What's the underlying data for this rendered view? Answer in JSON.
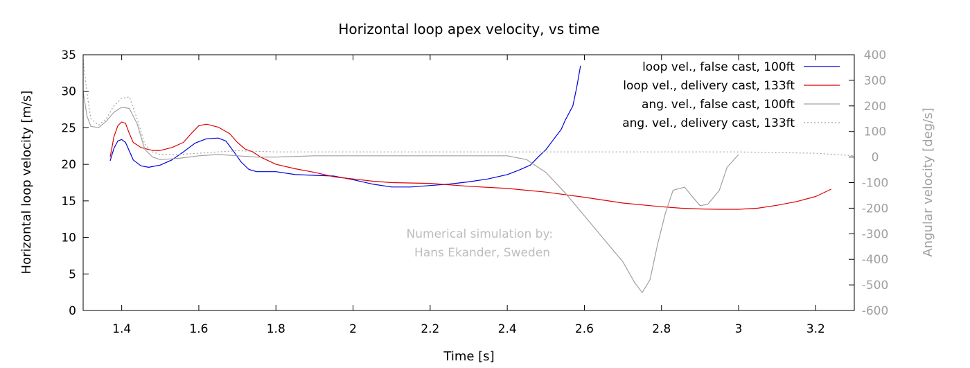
{
  "chart_data": {
    "type": "line",
    "title": "Horizontal loop apex velocity, vs time",
    "xlabel": "Time [s]",
    "ylabel": "Horizontal loop velocity [m/s]",
    "y2label": "Angular velocity [deg/s]",
    "xlim": [
      1.3,
      3.3
    ],
    "ylim": [
      0,
      35
    ],
    "y2lim": [
      -600,
      400
    ],
    "xticks": [
      1.4,
      1.6,
      1.8,
      2,
      2.2,
      2.4,
      2.6,
      2.8,
      3,
      3.2
    ],
    "xtick_labels": [
      "1.4",
      "1.6",
      "1.8",
      "2",
      "2.2",
      "2.4",
      "2.6",
      "2.8",
      "3",
      "3.2"
    ],
    "yticks": [
      0,
      5,
      10,
      15,
      20,
      25,
      30,
      35
    ],
    "ytick_labels": [
      "0",
      "5",
      "10",
      "15",
      "20",
      "25",
      "30",
      "35"
    ],
    "y2ticks": [
      -600,
      -500,
      -400,
      -300,
      -200,
      -100,
      0,
      100,
      200,
      300,
      400
    ],
    "y2tick_labels": [
      "-600",
      "-500",
      "-400",
      "-300",
      "-200",
      "-100",
      "0",
      "100",
      "200",
      "300",
      "400"
    ],
    "grid": false,
    "legend": "top-right",
    "annotation": [
      "Numerical simulation by:",
      "Hans Ekander, Sweden"
    ],
    "series": [
      {
        "name": "loop vel., false cast, 100ft",
        "axis": "left",
        "color": "#0000dd",
        "dash": "solid",
        "points": [
          [
            1.37,
            20.5
          ],
          [
            1.38,
            22.2
          ],
          [
            1.39,
            23.2
          ],
          [
            1.4,
            23.4
          ],
          [
            1.41,
            23.0
          ],
          [
            1.42,
            21.8
          ],
          [
            1.43,
            20.6
          ],
          [
            1.45,
            19.8
          ],
          [
            1.47,
            19.6
          ],
          [
            1.5,
            19.9
          ],
          [
            1.53,
            20.6
          ],
          [
            1.56,
            21.7
          ],
          [
            1.59,
            22.9
          ],
          [
            1.62,
            23.5
          ],
          [
            1.65,
            23.6
          ],
          [
            1.67,
            23.2
          ],
          [
            1.69,
            21.8
          ],
          [
            1.71,
            20.3
          ],
          [
            1.73,
            19.3
          ],
          [
            1.75,
            19.0
          ],
          [
            1.8,
            19.0
          ],
          [
            1.85,
            18.6
          ],
          [
            1.9,
            18.5
          ],
          [
            1.95,
            18.4
          ],
          [
            2.0,
            17.9
          ],
          [
            2.05,
            17.3
          ],
          [
            2.1,
            16.9
          ],
          [
            2.15,
            16.9
          ],
          [
            2.2,
            17.1
          ],
          [
            2.25,
            17.3
          ],
          [
            2.3,
            17.6
          ],
          [
            2.35,
            18.0
          ],
          [
            2.4,
            18.6
          ],
          [
            2.43,
            19.2
          ],
          [
            2.46,
            19.9
          ],
          [
            2.48,
            21.0
          ],
          [
            2.5,
            22.0
          ],
          [
            2.52,
            23.4
          ],
          [
            2.54,
            24.8
          ],
          [
            2.55,
            26.0
          ],
          [
            2.57,
            28.0
          ],
          [
            2.58,
            30.5
          ],
          [
            2.59,
            33.5
          ]
        ]
      },
      {
        "name": "loop vel., delivery cast, 133ft",
        "axis": "left",
        "color": "#dd0000",
        "dash": "solid",
        "points": [
          [
            1.37,
            21.0
          ],
          [
            1.38,
            23.8
          ],
          [
            1.39,
            25.3
          ],
          [
            1.4,
            25.8
          ],
          [
            1.41,
            25.6
          ],
          [
            1.42,
            24.2
          ],
          [
            1.43,
            23.0
          ],
          [
            1.45,
            22.3
          ],
          [
            1.48,
            21.9
          ],
          [
            1.5,
            21.9
          ],
          [
            1.53,
            22.3
          ],
          [
            1.56,
            23.0
          ],
          [
            1.58,
            24.2
          ],
          [
            1.6,
            25.3
          ],
          [
            1.62,
            25.5
          ],
          [
            1.65,
            25.1
          ],
          [
            1.68,
            24.2
          ],
          [
            1.7,
            23.0
          ],
          [
            1.72,
            22.1
          ],
          [
            1.74,
            21.7
          ],
          [
            1.76,
            21.0
          ],
          [
            1.8,
            20.0
          ],
          [
            1.85,
            19.4
          ],
          [
            1.9,
            18.9
          ],
          [
            1.95,
            18.3
          ],
          [
            2.0,
            18.0
          ],
          [
            2.05,
            17.7
          ],
          [
            2.1,
            17.5
          ],
          [
            2.2,
            17.4
          ],
          [
            2.3,
            17.0
          ],
          [
            2.4,
            16.7
          ],
          [
            2.5,
            16.2
          ],
          [
            2.6,
            15.5
          ],
          [
            2.7,
            14.7
          ],
          [
            2.8,
            14.2
          ],
          [
            2.85,
            14.0
          ],
          [
            2.9,
            13.9
          ],
          [
            2.95,
            13.85
          ],
          [
            3.0,
            13.85
          ],
          [
            3.05,
            14.0
          ],
          [
            3.1,
            14.4
          ],
          [
            3.15,
            14.9
          ],
          [
            3.2,
            15.6
          ],
          [
            3.24,
            16.6
          ]
        ]
      },
      {
        "name": "ang. vel., false cast, 100ft",
        "axis": "right",
        "color": "#a0a0a0",
        "dash": "solid",
        "points": [
          [
            1.3,
            255
          ],
          [
            1.31,
            160
          ],
          [
            1.32,
            120
          ],
          [
            1.34,
            115
          ],
          [
            1.36,
            140
          ],
          [
            1.38,
            175
          ],
          [
            1.4,
            195
          ],
          [
            1.42,
            190
          ],
          [
            1.44,
            130
          ],
          [
            1.46,
            30
          ],
          [
            1.48,
            0
          ],
          [
            1.5,
            -10
          ],
          [
            1.55,
            -5
          ],
          [
            1.6,
            5
          ],
          [
            1.65,
            10
          ],
          [
            1.7,
            5
          ],
          [
            1.75,
            0
          ],
          [
            1.8,
            0
          ],
          [
            1.9,
            5
          ],
          [
            2.0,
            5
          ],
          [
            2.1,
            5
          ],
          [
            2.2,
            5
          ],
          [
            2.3,
            5
          ],
          [
            2.4,
            5
          ],
          [
            2.45,
            -10
          ],
          [
            2.5,
            -60
          ],
          [
            2.55,
            -140
          ],
          [
            2.6,
            -230
          ],
          [
            2.65,
            -320
          ],
          [
            2.7,
            -410
          ],
          [
            2.73,
            -490
          ],
          [
            2.75,
            -530
          ],
          [
            2.77,
            -480
          ],
          [
            2.79,
            -340
          ],
          [
            2.81,
            -220
          ],
          [
            2.83,
            -130
          ],
          [
            2.86,
            -118
          ],
          [
            2.88,
            -155
          ],
          [
            2.9,
            -190
          ],
          [
            2.92,
            -185
          ],
          [
            2.95,
            -130
          ],
          [
            2.97,
            -40
          ],
          [
            3.0,
            10
          ]
        ]
      },
      {
        "name": "ang. vel., delivery cast, 133ft",
        "axis": "right",
        "color": "#a0a0a0",
        "dash": "dotted",
        "points": [
          [
            1.3,
            380
          ],
          [
            1.31,
            250
          ],
          [
            1.32,
            150
          ],
          [
            1.34,
            125
          ],
          [
            1.36,
            150
          ],
          [
            1.38,
            200
          ],
          [
            1.4,
            230
          ],
          [
            1.42,
            235
          ],
          [
            1.44,
            150
          ],
          [
            1.46,
            50
          ],
          [
            1.48,
            20
          ],
          [
            1.5,
            10
          ],
          [
            1.55,
            10
          ],
          [
            1.6,
            15
          ],
          [
            1.65,
            20
          ],
          [
            1.7,
            25
          ],
          [
            1.8,
            20
          ],
          [
            1.9,
            20
          ],
          [
            2.0,
            20
          ],
          [
            2.5,
            20
          ],
          [
            3.0,
            20
          ],
          [
            3.2,
            15
          ],
          [
            3.3,
            5
          ]
        ]
      }
    ]
  }
}
